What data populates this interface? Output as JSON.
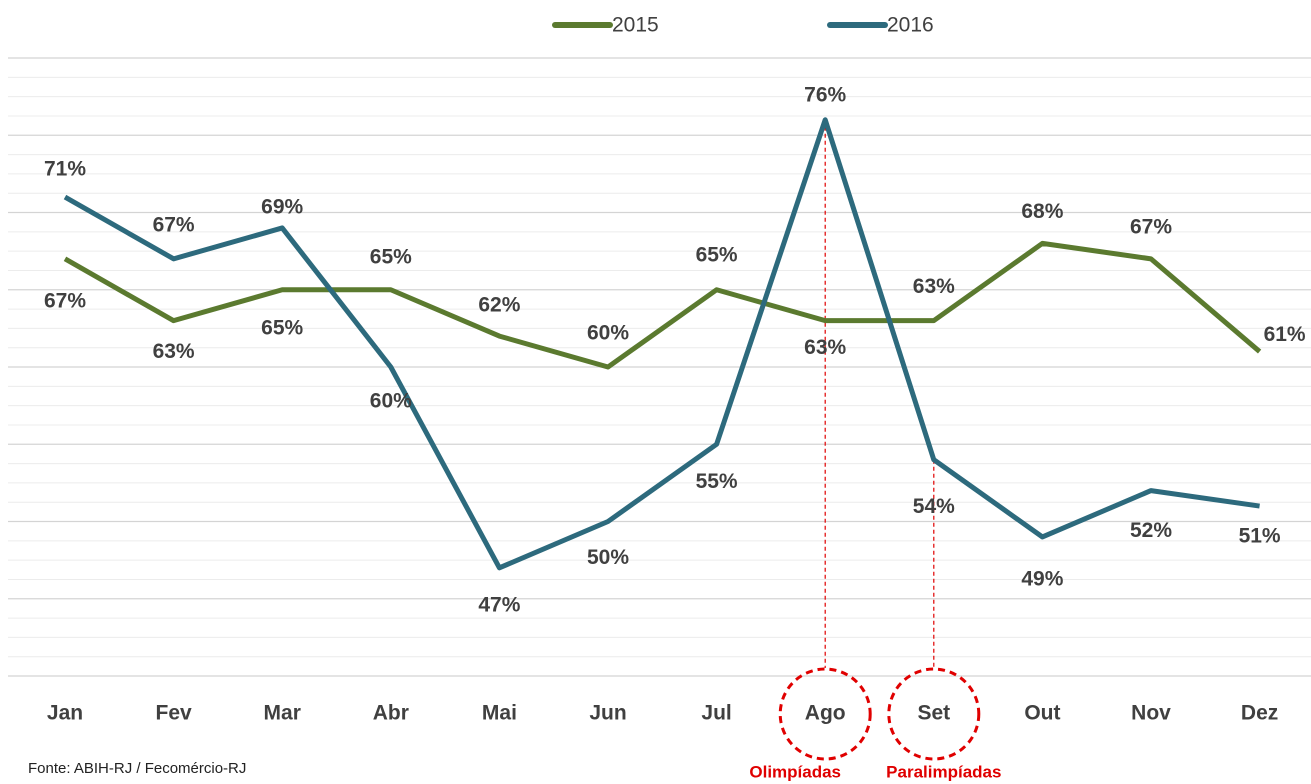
{
  "chart_data": {
    "type": "line",
    "categories": [
      "Jan",
      "Fev",
      "Mar",
      "Abr",
      "Mai",
      "Jun",
      "Jul",
      "Ago",
      "Set",
      "Out",
      "Nov",
      "Dez"
    ],
    "series": [
      {
        "name": "2015",
        "color": "#5b7a2f",
        "values": [
          67,
          63,
          65,
          65,
          62,
          60,
          65,
          63,
          63,
          68,
          67,
          61
        ],
        "value_labels": [
          "67%",
          "63%",
          "65%",
          "65%",
          "62%",
          "60%",
          "65%",
          "63%",
          "63%",
          "68%",
          "67%",
          "61%"
        ]
      },
      {
        "name": "2016",
        "color": "#2d6a7d",
        "values": [
          71,
          67,
          69,
          60,
          47,
          50,
          55,
          76,
          54,
          49,
          52,
          51
        ],
        "value_labels": [
          "71%",
          "67%",
          "69%",
          "60%",
          "47%",
          "50%",
          "55%",
          "76%",
          "54%",
          "49%",
          "52%",
          "51%"
        ]
      }
    ],
    "ylim": [
      40,
      80
    ],
    "yticks": [
      40,
      45,
      50,
      55,
      60,
      65,
      70,
      75,
      80
    ],
    "grid": true,
    "annotations": [
      {
        "category": "Ago",
        "text": "Olimpíadas"
      },
      {
        "category": "Set",
        "text": "Paralimpíadas"
      }
    ],
    "source": "Fonte: ABIH-RJ / Fecomércio-RJ"
  }
}
